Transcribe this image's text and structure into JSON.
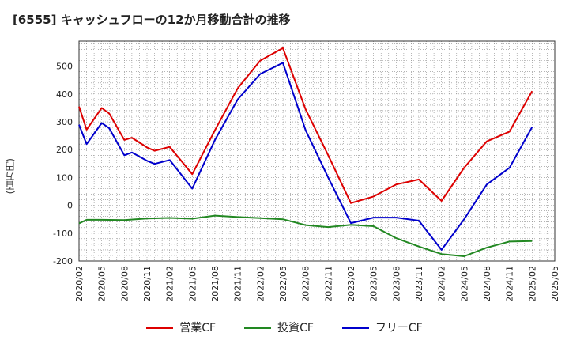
{
  "chart_data": {
    "type": "line",
    "title": "[6555]  キャッシュフローの12か月移動合計の推移",
    "ylabel": "(百万円)",
    "xlabel": "",
    "ylim": [
      -200,
      590
    ],
    "yticks": [
      -200,
      -100,
      0,
      100,
      200,
      300,
      400,
      500
    ],
    "xlim": [
      "2020/02",
      "2025/05"
    ],
    "xticks": [
      "2020/02",
      "2020/05",
      "2020/08",
      "2020/11",
      "2021/02",
      "2021/05",
      "2021/08",
      "2021/11",
      "2022/02",
      "2022/05",
      "2022/08",
      "2022/11",
      "2023/02",
      "2023/05",
      "2023/08",
      "2023/11",
      "2024/02",
      "2024/05",
      "2024/08",
      "2024/11",
      "2025/02",
      "2025/05"
    ],
    "grid": true,
    "series": [
      {
        "name": "営業CF",
        "color": "#dd0000",
        "points": [
          [
            "2020/02",
            355
          ],
          [
            "2020/03",
            272
          ],
          [
            "2020/05",
            350
          ],
          [
            "2020/06",
            330
          ],
          [
            "2020/08",
            235
          ],
          [
            "2020/09",
            243
          ],
          [
            "2020/11",
            208
          ],
          [
            "2020/12",
            196
          ],
          [
            "2021/02",
            210
          ],
          [
            "2021/05",
            112
          ],
          [
            "2021/08",
            270
          ],
          [
            "2021/11",
            420
          ],
          [
            "2022/02",
            520
          ],
          [
            "2022/05",
            565
          ],
          [
            "2022/08",
            345
          ],
          [
            "2022/11",
            180
          ],
          [
            "2023/02",
            8
          ],
          [
            "2023/05",
            32
          ],
          [
            "2023/08",
            75
          ],
          [
            "2023/11",
            93
          ],
          [
            "2024/02",
            16
          ],
          [
            "2024/05",
            135
          ],
          [
            "2024/08",
            230
          ],
          [
            "2024/11",
            265
          ],
          [
            "2025/02",
            410
          ]
        ]
      },
      {
        "name": "投資CF",
        "color": "#228822",
        "points": [
          [
            "2020/02",
            -65
          ],
          [
            "2020/03",
            -52
          ],
          [
            "2020/05",
            -52
          ],
          [
            "2020/08",
            -53
          ],
          [
            "2020/11",
            -47
          ],
          [
            "2021/02",
            -45
          ],
          [
            "2021/05",
            -48
          ],
          [
            "2021/08",
            -37
          ],
          [
            "2021/11",
            -42
          ],
          [
            "2022/02",
            -46
          ],
          [
            "2022/05",
            -50
          ],
          [
            "2022/08",
            -71
          ],
          [
            "2022/11",
            -78
          ],
          [
            "2023/02",
            -70
          ],
          [
            "2023/05",
            -75
          ],
          [
            "2023/08",
            -118
          ],
          [
            "2023/11",
            -148
          ],
          [
            "2024/02",
            -175
          ],
          [
            "2024/05",
            -183
          ],
          [
            "2024/08",
            -152
          ],
          [
            "2024/11",
            -130
          ],
          [
            "2025/02",
            -128
          ]
        ]
      },
      {
        "name": "フリーCF",
        "color": "#0000cc",
        "points": [
          [
            "2020/02",
            290
          ],
          [
            "2020/03",
            220
          ],
          [
            "2020/05",
            296
          ],
          [
            "2020/06",
            277
          ],
          [
            "2020/08",
            180
          ],
          [
            "2020/09",
            190
          ],
          [
            "2020/11",
            160
          ],
          [
            "2020/12",
            149
          ],
          [
            "2021/02",
            163
          ],
          [
            "2021/05",
            60
          ],
          [
            "2021/08",
            235
          ],
          [
            "2021/11",
            380
          ],
          [
            "2022/02",
            472
          ],
          [
            "2022/05",
            512
          ],
          [
            "2022/08",
            270
          ],
          [
            "2022/11",
            100
          ],
          [
            "2023/02",
            -64
          ],
          [
            "2023/05",
            -44
          ],
          [
            "2023/08",
            -44
          ],
          [
            "2023/11",
            -55
          ],
          [
            "2024/02",
            -160
          ],
          [
            "2024/05",
            -50
          ],
          [
            "2024/08",
            75
          ],
          [
            "2024/11",
            135
          ],
          [
            "2025/02",
            281
          ]
        ]
      }
    ]
  }
}
